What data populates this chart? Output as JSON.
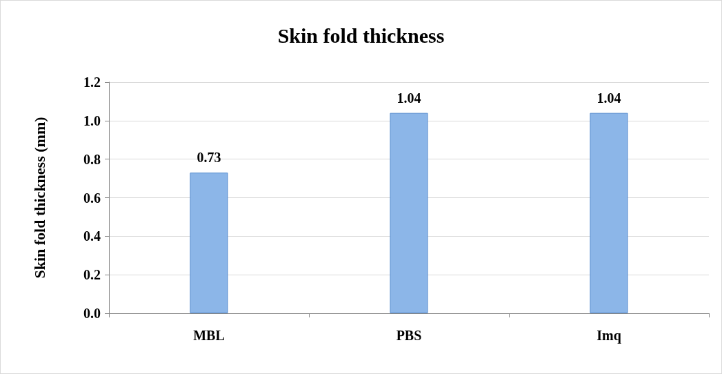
{
  "chart_data": {
    "type": "bar",
    "title": "Skin fold thickness",
    "ylabel": "Skin fold thickness (mm)",
    "categories": [
      "MBL",
      "PBS",
      "Imq"
    ],
    "values": [
      0.73,
      1.04,
      1.04
    ],
    "color": "#8cb6e8",
    "ylim": [
      0,
      1.2
    ],
    "yticks": [
      {
        "value": 0,
        "label": "0.0"
      },
      0.2,
      0.4,
      0.6,
      0.8,
      {
        "value": 1,
        "label": "1.0"
      },
      1.2
    ],
    "grid": "y",
    "data_labels": true
  }
}
